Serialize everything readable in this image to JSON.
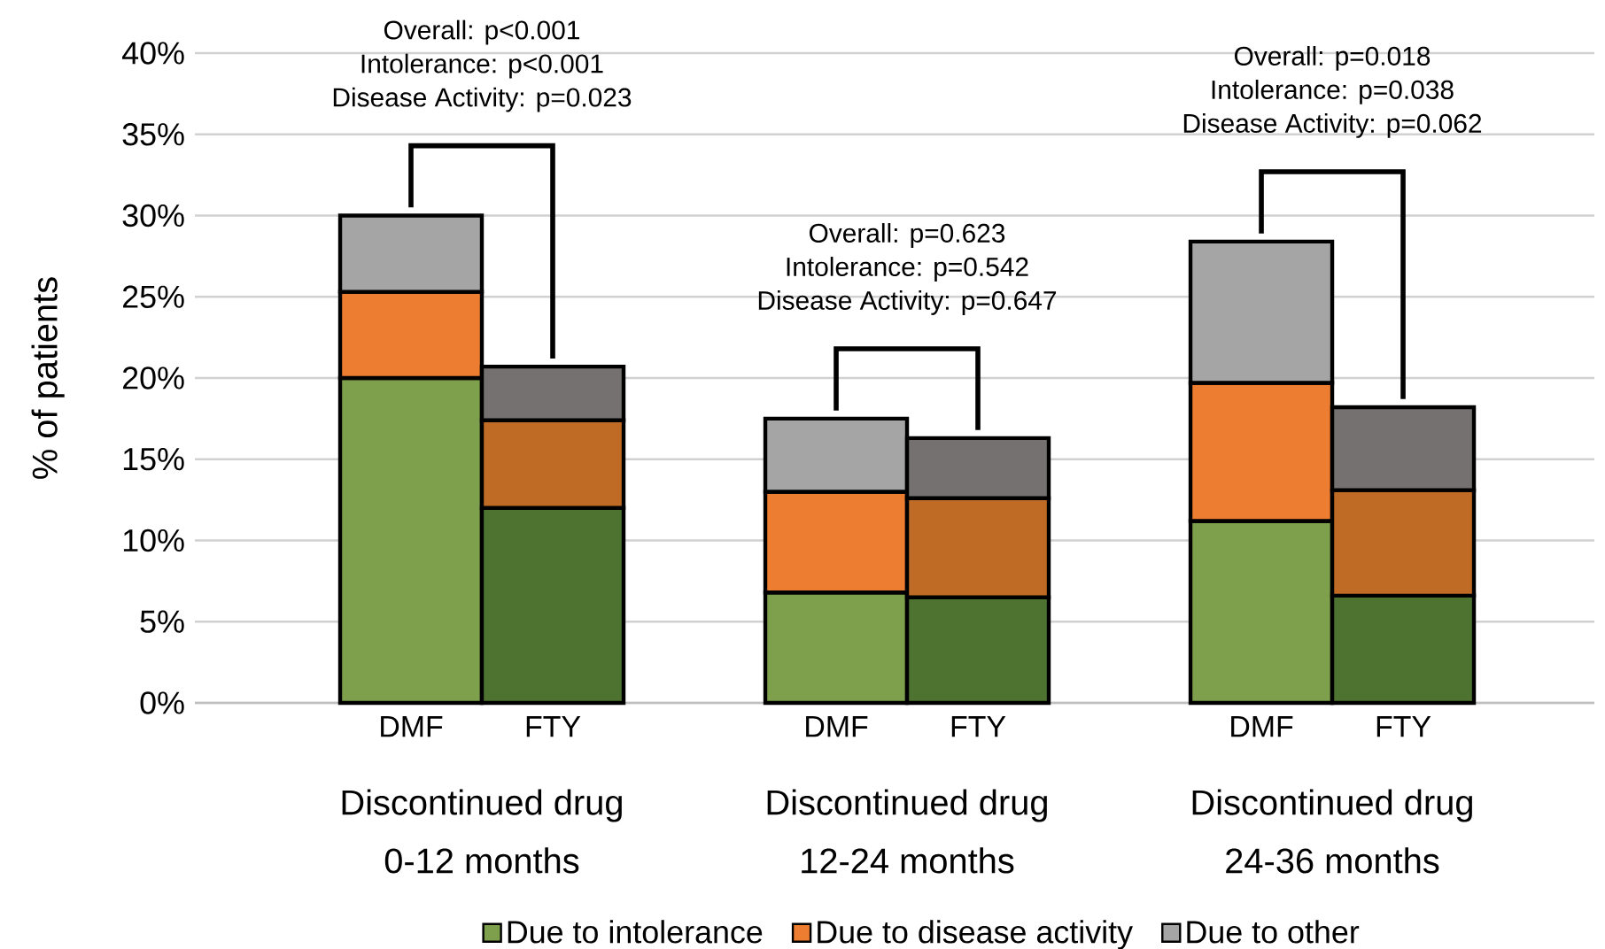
{
  "chart_data": {
    "type": "bar",
    "stacked": true,
    "ylabel": "% of patients",
    "categories": [
      "DMF",
      "FTY",
      null,
      "DMF",
      "FTY",
      null,
      "DMF",
      "FTY"
    ],
    "series": [
      {
        "name": "Due to intolerance",
        "color": "#7ea04d",
        "colors": [
          "#7ea04d",
          "#4e7330",
          null,
          "#7ea04d",
          "#4e7330",
          null,
          "#7ea04d",
          "#4e7330"
        ],
        "values": [
          20.0,
          12.0,
          null,
          6.8,
          6.5,
          null,
          11.2,
          6.6
        ]
      },
      {
        "name": "Due to disease activity",
        "color": "#ed7d31",
        "colors": [
          "#ed7d31",
          "#bf6b25",
          null,
          "#ed7d31",
          "#bf6b25",
          null,
          "#ed7d31",
          "#bf6b25"
        ],
        "values": [
          5.3,
          5.4,
          null,
          6.2,
          6.1,
          null,
          8.5,
          6.5
        ]
      },
      {
        "name": "Due to other",
        "color": "#a5a5a5",
        "colors": [
          "#a5a5a5",
          "#767171",
          null,
          "#a5a5a5",
          "#767171",
          null,
          "#a5a5a5",
          "#767171"
        ],
        "values": [
          4.7,
          3.3,
          null,
          4.5,
          3.7,
          null,
          8.7,
          5.1
        ]
      }
    ],
    "ylim": [
      0,
      40
    ],
    "yticks": [
      {
        "value": 0,
        "label": "0%"
      },
      {
        "value": 5,
        "label": "5%"
      },
      {
        "value": 10,
        "label": "10%"
      },
      {
        "value": 15,
        "label": "15%"
      },
      {
        "value": 20,
        "label": "20%"
      },
      {
        "value": 25,
        "label": "25%"
      },
      {
        "value": 30,
        "label": "30%"
      },
      {
        "value": 35,
        "label": "35%"
      },
      {
        "value": 40,
        "label": "40%"
      }
    ],
    "grid": "y",
    "legend": "bottom",
    "annotations": [
      "Overall: p<0.001",
      "Intolerance: p<0.001",
      "Disease Activity: p=0.023",
      "Overall: p=0.623",
      "Intolerance: p=0.542",
      "Disease Activity: p=0.647",
      "Overall: p=0.018",
      "Intolerance: p=0.038",
      "Disease Activity: p=0.062",
      "Discontinued drug",
      "0-12 months",
      "Discontinued drug",
      "12-24 months",
      "Discontinued drug",
      "24-36 months"
    ]
  }
}
